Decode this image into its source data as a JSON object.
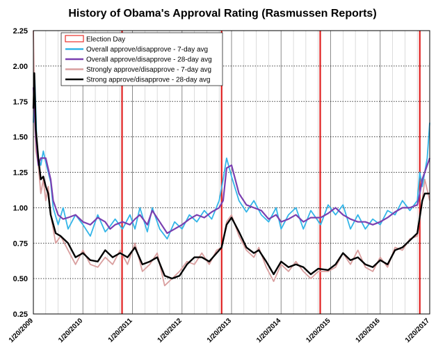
{
  "chart_data": {
    "type": "line",
    "title": "History of Obama's Approval Rating (Rasmussen Reports)",
    "xlabel": "",
    "ylabel": "",
    "x_range": [
      2009.05,
      2017.05
    ],
    "ylim": [
      0.25,
      2.25
    ],
    "y_ticks": [
      0.25,
      0.5,
      0.75,
      1.0,
      1.25,
      1.5,
      1.75,
      2.0,
      2.25
    ],
    "y_tick_labels": [
      "0.25",
      "0.50",
      "0.75",
      "1.00",
      "1.25",
      "1.50",
      "1.75",
      "2.00",
      "2.25"
    ],
    "x_ticks": [
      2009.05,
      2010.05,
      2011.05,
      2012.05,
      2013.05,
      2014.05,
      2015.05,
      2016.05,
      2017.05
    ],
    "x_tick_labels": [
      "1/20/2009",
      "1/20/2010",
      "1/20/2011",
      "1/20/2012",
      "1/20/2013",
      "1/20/2014",
      "1/20/2015",
      "1/20/2016",
      "1/20/2017"
    ],
    "minor_gridlines_per_year": 4,
    "election_days": [
      2010.84,
      2012.85,
      2014.84,
      2016.85
    ],
    "legend": {
      "position": "top-left",
      "entries": [
        {
          "label": "Election Day",
          "color": "#e8302a",
          "style": "box"
        },
        {
          "label": "Overall approve/disapprove - 7-day avg",
          "color": "#33b5e8",
          "style": "line"
        },
        {
          "label": "Overall approve/disapprove - 28-day avg",
          "color": "#7a3fb0",
          "style": "line"
        },
        {
          "label": "Strongly approve/disapprove - 7-day avg",
          "color": "#d99e9e",
          "style": "line"
        },
        {
          "label": "Strong approve/disapprove - 28-day avg",
          "color": "#000000",
          "style": "line"
        }
      ]
    },
    "series": [
      {
        "name": "Overall approve/disapprove - 28-day avg",
        "color": "#7a3fb0",
        "x": [
          2009.05,
          2009.1,
          2009.15,
          2009.2,
          2009.3,
          2009.4,
          2009.45,
          2009.55,
          2009.65,
          2009.75,
          2009.9,
          2010.05,
          2010.2,
          2010.35,
          2010.5,
          2010.6,
          2010.7,
          2010.85,
          2011.0,
          2011.1,
          2011.2,
          2011.35,
          2011.45,
          2011.6,
          2011.75,
          2011.9,
          2012.05,
          2012.2,
          2012.35,
          2012.5,
          2012.65,
          2012.8,
          2012.88,
          2012.95,
          2013.05,
          2013.2,
          2013.35,
          2013.5,
          2013.65,
          2013.8,
          2013.95,
          2014.05,
          2014.2,
          2014.35,
          2014.5,
          2014.65,
          2014.85,
          2015.0,
          2015.15,
          2015.3,
          2015.45,
          2015.6,
          2015.75,
          2015.9,
          2016.05,
          2016.2,
          2016.35,
          2016.5,
          2016.65,
          2016.8,
          2016.85,
          2016.9,
          2017.0,
          2017.05
        ],
        "y": [
          1.85,
          1.5,
          1.3,
          1.35,
          1.35,
          1.2,
          1.05,
          0.95,
          0.92,
          0.93,
          0.95,
          0.9,
          0.88,
          0.93,
          0.9,
          0.85,
          0.88,
          0.9,
          0.88,
          0.92,
          0.95,
          0.88,
          0.98,
          0.9,
          0.82,
          0.85,
          0.88,
          0.92,
          0.95,
          0.93,
          0.97,
          1.0,
          1.05,
          1.28,
          1.3,
          1.1,
          1.02,
          1.0,
          0.98,
          0.92,
          0.95,
          0.9,
          0.92,
          0.95,
          0.9,
          0.93,
          0.93,
          0.96,
          1.0,
          0.95,
          0.92,
          0.9,
          0.9,
          0.88,
          0.9,
          0.93,
          0.97,
          1.0,
          1.0,
          1.02,
          1.1,
          1.2,
          1.3,
          1.35
        ]
      },
      {
        "name": "Overall approve/disapprove - 7-day avg",
        "color": "#33b5e8",
        "x": [
          2009.05,
          2009.08,
          2009.12,
          2009.15,
          2009.2,
          2009.25,
          2009.3,
          2009.4,
          2009.45,
          2009.55,
          2009.65,
          2009.75,
          2009.9,
          2010.05,
          2010.2,
          2010.35,
          2010.5,
          2010.6,
          2010.7,
          2010.85,
          2011.0,
          2011.1,
          2011.2,
          2011.35,
          2011.45,
          2011.6,
          2011.75,
          2011.9,
          2012.05,
          2012.2,
          2012.35,
          2012.5,
          2012.65,
          2012.8,
          2012.88,
          2012.95,
          2013.05,
          2013.2,
          2013.35,
          2013.5,
          2013.65,
          2013.8,
          2013.95,
          2014.05,
          2014.2,
          2014.35,
          2014.5,
          2014.65,
          2014.85,
          2015.0,
          2015.15,
          2015.3,
          2015.45,
          2015.6,
          2015.75,
          2015.9,
          2016.05,
          2016.2,
          2016.35,
          2016.5,
          2016.65,
          2016.8,
          2016.85,
          2016.9,
          2017.0,
          2017.05
        ],
        "y": [
          1.6,
          1.9,
          1.45,
          1.35,
          1.3,
          1.4,
          1.32,
          1.18,
          1.0,
          0.88,
          1.0,
          0.85,
          0.95,
          0.88,
          0.8,
          0.95,
          0.83,
          0.87,
          0.92,
          0.85,
          0.95,
          0.85,
          1.0,
          0.83,
          1.0,
          0.85,
          0.78,
          0.9,
          0.85,
          0.95,
          0.9,
          0.98,
          0.92,
          1.05,
          1.2,
          1.35,
          1.22,
          1.05,
          0.97,
          1.05,
          0.95,
          0.9,
          1.0,
          0.85,
          0.95,
          1.0,
          0.85,
          0.98,
          0.88,
          1.02,
          0.95,
          1.02,
          0.85,
          0.95,
          0.85,
          0.92,
          0.88,
          0.98,
          0.95,
          1.05,
          0.98,
          1.05,
          1.25,
          1.15,
          1.35,
          1.6
        ]
      },
      {
        "name": "Strongly approve/disapprove - 7-day avg",
        "color": "#d99e9e",
        "x": [
          2009.05,
          2009.08,
          2009.1,
          2009.15,
          2009.2,
          2009.25,
          2009.3,
          2009.35,
          2009.4,
          2009.5,
          2009.6,
          2009.75,
          2009.9,
          2010.05,
          2010.2,
          2010.35,
          2010.5,
          2010.65,
          2010.8,
          2010.95,
          2011.1,
          2011.25,
          2011.4,
          2011.55,
          2011.7,
          2011.85,
          2012.0,
          2012.15,
          2012.3,
          2012.45,
          2012.6,
          2012.75,
          2012.85,
          2012.95,
          2013.05,
          2013.2,
          2013.35,
          2013.5,
          2013.6,
          2013.75,
          2013.9,
          2014.05,
          2014.2,
          2014.35,
          2014.5,
          2014.65,
          2014.8,
          2015.0,
          2015.15,
          2015.3,
          2015.45,
          2015.6,
          2015.75,
          2015.9,
          2016.05,
          2016.2,
          2016.35,
          2016.5,
          2016.65,
          2016.8,
          2016.9,
          2016.95,
          2017.05
        ],
        "y": [
          2.25,
          1.6,
          1.4,
          1.3,
          1.1,
          1.2,
          1.05,
          1.15,
          0.95,
          0.75,
          0.8,
          0.7,
          0.6,
          0.7,
          0.6,
          0.58,
          0.65,
          0.6,
          0.7,
          0.6,
          0.75,
          0.55,
          0.6,
          0.68,
          0.45,
          0.5,
          0.55,
          0.62,
          0.6,
          0.68,
          0.6,
          0.7,
          0.72,
          0.9,
          0.95,
          0.8,
          0.7,
          0.65,
          0.72,
          0.58,
          0.48,
          0.6,
          0.55,
          0.62,
          0.55,
          0.5,
          0.55,
          0.55,
          0.58,
          0.68,
          0.6,
          0.7,
          0.58,
          0.55,
          0.65,
          0.58,
          0.72,
          0.7,
          0.78,
          0.8,
          1.05,
          1.2,
          1.05
        ]
      },
      {
        "name": "Strong approve/disapprove - 28-day avg",
        "color": "#000000",
        "x": [
          2009.05,
          2009.07,
          2009.1,
          2009.15,
          2009.2,
          2009.25,
          2009.3,
          2009.35,
          2009.4,
          2009.5,
          2009.6,
          2009.75,
          2009.9,
          2010.05,
          2010.2,
          2010.35,
          2010.5,
          2010.65,
          2010.8,
          2010.95,
          2011.1,
          2011.25,
          2011.4,
          2011.55,
          2011.7,
          2011.85,
          2012.0,
          2012.15,
          2012.3,
          2012.45,
          2012.6,
          2012.75,
          2012.85,
          2012.95,
          2013.05,
          2013.2,
          2013.35,
          2013.5,
          2013.6,
          2013.75,
          2013.9,
          2014.05,
          2014.2,
          2014.35,
          2014.5,
          2014.65,
          2014.8,
          2015.0,
          2015.15,
          2015.3,
          2015.45,
          2015.6,
          2015.75,
          2015.9,
          2016.05,
          2016.2,
          2016.35,
          2016.5,
          2016.65,
          2016.8,
          2016.9,
          2016.95,
          2017.05
        ],
        "y": [
          1.7,
          1.95,
          1.55,
          1.35,
          1.2,
          1.22,
          1.15,
          1.1,
          0.95,
          0.82,
          0.8,
          0.75,
          0.65,
          0.68,
          0.63,
          0.62,
          0.7,
          0.65,
          0.68,
          0.65,
          0.72,
          0.6,
          0.62,
          0.65,
          0.52,
          0.5,
          0.52,
          0.6,
          0.65,
          0.65,
          0.62,
          0.68,
          0.72,
          0.88,
          0.93,
          0.83,
          0.72,
          0.68,
          0.7,
          0.62,
          0.53,
          0.62,
          0.58,
          0.6,
          0.58,
          0.53,
          0.57,
          0.56,
          0.6,
          0.68,
          0.63,
          0.65,
          0.6,
          0.58,
          0.63,
          0.6,
          0.7,
          0.72,
          0.77,
          0.82,
          1.05,
          1.1,
          1.1
        ]
      }
    ]
  }
}
